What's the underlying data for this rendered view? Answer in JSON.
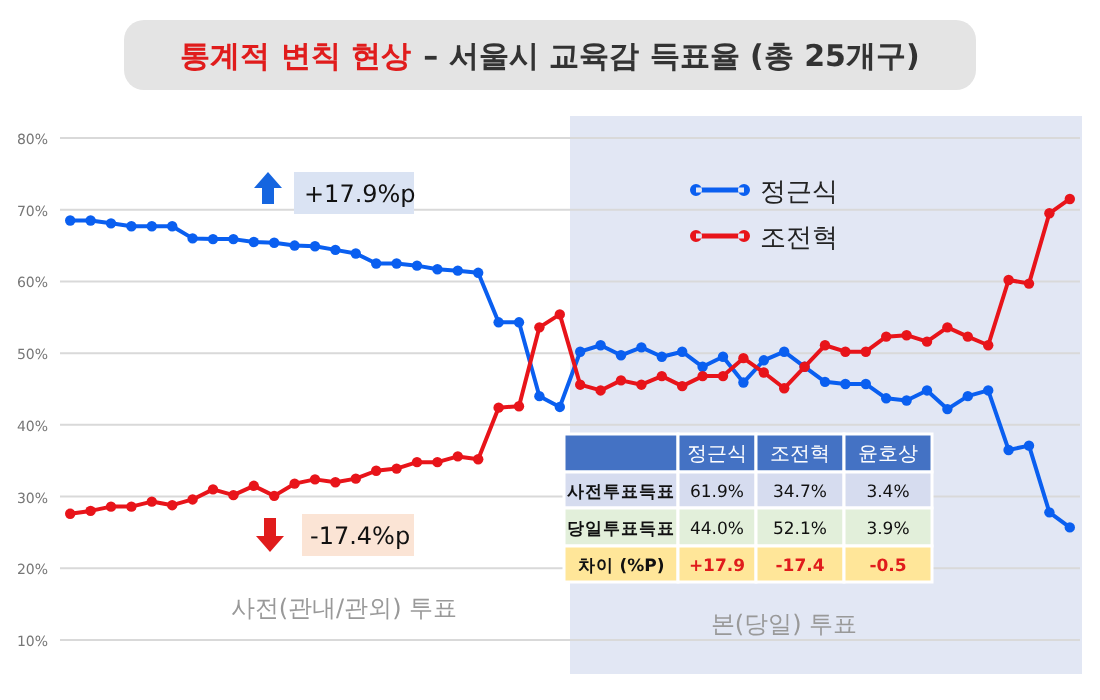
{
  "chart_data": {
    "type": "line",
    "title": "통계적 변칙 현상",
    "subtitle": "– 서울시 교육감 득표율 (총 25개구)",
    "categories": [
      null,
      null,
      null,
      null,
      null,
      null,
      null,
      null,
      null,
      null,
      null,
      null,
      null,
      null,
      null,
      null,
      null,
      null,
      null,
      null,
      null,
      null,
      null,
      null,
      null,
      null,
      null,
      null,
      null,
      null,
      null,
      null,
      null,
      null,
      null,
      null,
      null,
      null,
      null,
      null,
      null,
      null,
      null,
      null,
      null,
      null,
      null,
      null,
      null,
      null
    ],
    "series": [
      {
        "name": "정근식",
        "color": "#0a5ff0",
        "values": [
          68.5,
          68.5,
          68.1,
          67.7,
          67.7,
          67.7,
          66.0,
          65.9,
          65.9,
          65.5,
          65.4,
          65.0,
          64.9,
          64.4,
          63.9,
          62.5,
          62.5,
          62.2,
          61.7,
          61.5,
          61.2,
          54.3,
          54.3,
          44.0,
          42.5,
          50.2,
          51.1,
          49.7,
          50.8,
          49.5,
          50.2,
          48.1,
          49.5,
          45.9,
          49.0,
          50.2,
          48.1,
          46.0,
          45.7,
          45.7,
          43.7,
          43.4,
          44.8,
          42.2,
          44.0,
          44.8,
          36.5,
          37.1,
          27.8,
          25.7
        ]
      },
      {
        "name": "조전혁",
        "color": "#e8141a",
        "values": [
          27.6,
          28.0,
          28.6,
          28.6,
          29.3,
          28.8,
          29.6,
          31.0,
          30.2,
          31.5,
          30.1,
          31.8,
          32.4,
          32.0,
          32.5,
          33.6,
          33.9,
          34.8,
          34.8,
          35.6,
          35.2,
          42.4,
          42.6,
          53.6,
          55.4,
          45.6,
          44.8,
          46.2,
          45.6,
          46.8,
          45.4,
          46.8,
          46.8,
          49.3,
          47.3,
          45.1,
          48.1,
          51.1,
          50.2,
          50.2,
          52.3,
          52.5,
          51.6,
          53.6,
          52.3,
          51.1,
          60.2,
          59.7,
          69.5,
          71.5
        ]
      }
    ],
    "ylim": [
      10,
      80
    ],
    "yticks": [
      {
        "value": 10,
        "label": "10%"
      },
      {
        "value": 20,
        "label": "20%"
      },
      {
        "value": 30,
        "label": "30%"
      },
      {
        "value": 40,
        "label": "40%"
      },
      {
        "value": 50,
        "label": "50%"
      },
      {
        "value": 60,
        "label": "60%"
      },
      {
        "value": 70,
        "label": "70%"
      },
      {
        "value": 80,
        "label": "80%"
      }
    ],
    "grid": "y",
    "legend": "top",
    "marker": "circle",
    "line_style": "solid",
    "annotations": [
      "+17.9%p",
      "-17.4%p",
      "사전(관내/관외) 투표",
      "본(당일) 투표",
      "정근식",
      "조전혁",
      "윤호상",
      "사전투표득표",
      "61.9%",
      "34.7%",
      "3.4%",
      "당일투표득표",
      "44.0%",
      "52.1%",
      "3.9%",
      "차이 (%P)",
      "+17.9",
      "-17.4",
      "-0.5"
    ]
  }
}
